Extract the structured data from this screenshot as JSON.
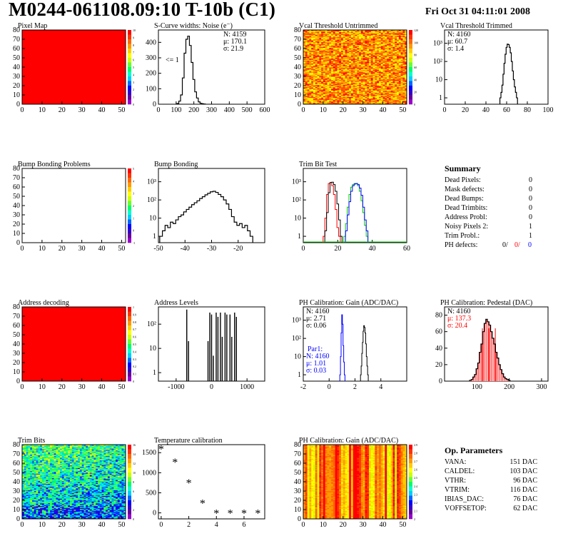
{
  "header": {
    "title": "M0244-061108.09:10 T-10b (C1)",
    "date": "Fri Oct 31 04:11:01 2008"
  },
  "colors": {
    "red": "#ff0000",
    "blue": "#0000ff",
    "green": "#00cc00",
    "palette": [
      "#ff0000",
      "#ff3300",
      "#ff6600",
      "#ff9900",
      "#ffcc00",
      "#ffff00",
      "#ccff00",
      "#66ff33",
      "#00ff66",
      "#00ffcc",
      "#00ccff",
      "#0066ff",
      "#0000ff",
      "#3300cc",
      "#660099",
      "#9900cc"
    ]
  },
  "chart_data": [
    {
      "id": "pixel-map",
      "type": "heatmap",
      "title": "Pixel Map",
      "xlim": [
        0,
        52
      ],
      "ylim": [
        0,
        80
      ],
      "xticks": [
        "0",
        "10",
        "20",
        "30",
        "40",
        "50"
      ],
      "yticks": [
        "0",
        "10",
        "20",
        "30",
        "40",
        "50",
        "60",
        "70",
        "80"
      ],
      "zlim": [
        0,
        10
      ],
      "fill": "uniform-max",
      "zticks": [
        "0",
        "1",
        "2",
        "3",
        "4",
        "5",
        "6",
        "7",
        "8",
        "9",
        "10"
      ]
    },
    {
      "id": "scurve-widths",
      "type": "histogram",
      "title": "S-Curve widths: Noise (e⁻)",
      "xlim": [
        0,
        600
      ],
      "ylim": [
        0,
        480
      ],
      "xticks": [
        "0",
        "100",
        "200",
        "300",
        "400",
        "500",
        "600"
      ],
      "yticks": [
        "0",
        "100",
        "200",
        "300",
        "400"
      ],
      "bins_x": [
        110,
        120,
        130,
        140,
        150,
        160,
        170,
        180,
        190,
        200,
        210,
        220,
        230,
        240,
        250,
        260
      ],
      "bins_y": [
        5,
        20,
        60,
        170,
        330,
        420,
        440,
        380,
        270,
        160,
        80,
        40,
        15,
        6,
        3,
        1
      ],
      "annotation": "<= 1",
      "stats": {
        "N": "4159",
        "mu": "170.1",
        "sigma": "21.9"
      }
    },
    {
      "id": "vcal-untrimmed",
      "type": "heatmap",
      "title": "Vcal Threshold Untrimmed",
      "xlim": [
        0,
        52
      ],
      "ylim": [
        0,
        80
      ],
      "xticks": [
        "0",
        "10",
        "20",
        "30",
        "40",
        "50"
      ],
      "yticks": [
        "0",
        "10",
        "20",
        "30",
        "40",
        "50",
        "60",
        "70",
        "80"
      ],
      "zticks": [
        "0",
        "20",
        "40",
        "60",
        "80",
        "100",
        "120"
      ],
      "zlim": [
        0,
        130
      ],
      "fill": "noisy-orange"
    },
    {
      "id": "vcal-trimmed",
      "type": "histogram",
      "title": "Vcal Threshold Trimmed",
      "log_y": true,
      "xlim": [
        0,
        100
      ],
      "xticks": [
        "0",
        "20",
        "40",
        "60",
        "80",
        "100"
      ],
      "yticks": [
        "1",
        "10",
        "10²",
        "10³"
      ],
      "bins_x": [
        54,
        55,
        56,
        57,
        58,
        59,
        60,
        61,
        62,
        63,
        64,
        65,
        66,
        67,
        68,
        69,
        70
      ],
      "bins_y": [
        1,
        2,
        5,
        20,
        80,
        250,
        600,
        900,
        850,
        600,
        300,
        100,
        30,
        10,
        4,
        2,
        1
      ],
      "stats": {
        "N": "4160",
        "mu": "60.7",
        "sigma": "1.4"
      }
    },
    {
      "id": "bump-bonding-problems",
      "type": "heatmap",
      "title": "Bump Bonding Problems",
      "xlim": [
        0,
        52
      ],
      "ylim": [
        0,
        80
      ],
      "xticks": [
        "0",
        "10",
        "20",
        "30",
        "40",
        "50"
      ],
      "yticks": [
        "0",
        "10",
        "20",
        "30",
        "40",
        "50",
        "60",
        "70",
        "80"
      ],
      "zticks": [
        "-1",
        "0",
        "1",
        "2",
        "3",
        "4",
        "5"
      ],
      "fill": "empty"
    },
    {
      "id": "bump-bonding",
      "type": "histogram",
      "title": "Bump Bonding",
      "log_y": true,
      "xlim": [
        -50,
        -10
      ],
      "xticks": [
        "-50",
        "-40",
        "-30",
        "-20"
      ],
      "yticks": [
        "1",
        "10",
        "10²",
        "10³"
      ],
      "bins_x": [
        -49,
        -48,
        -47,
        -46,
        -45,
        -44,
        -43,
        -42,
        -41,
        -40,
        -39,
        -38,
        -37,
        -36,
        -35,
        -34,
        -33,
        -32,
        -31,
        -30,
        -29,
        -28,
        -27,
        -26,
        -25,
        -24,
        -23,
        -22,
        -21,
        -20,
        -19,
        -18,
        -17,
        -16,
        -15
      ],
      "bins_y": [
        1,
        2,
        4,
        3,
        6,
        5,
        8,
        12,
        15,
        22,
        30,
        40,
        55,
        70,
        90,
        120,
        150,
        190,
        230,
        280,
        300,
        260,
        200,
        150,
        100,
        60,
        30,
        12,
        6,
        4,
        5,
        3,
        4,
        2,
        1
      ]
    },
    {
      "id": "trim-bit-test",
      "type": "histogram",
      "title": "Trim Bit Test",
      "log_y": true,
      "xlim": [
        0,
        60
      ],
      "xticks": [
        "0",
        "20",
        "40",
        "60"
      ],
      "yticks": [
        "1",
        "10",
        "10²",
        "10³"
      ],
      "series": [
        {
          "color": "red",
          "bins_x": [
            12,
            13,
            14,
            15,
            16,
            17,
            18,
            19,
            20,
            21
          ],
          "bins_y": [
            1,
            10,
            200,
            800,
            900,
            600,
            200,
            30,
            3,
            1
          ]
        },
        {
          "color": "black",
          "bins_x": [
            13,
            14,
            15,
            16,
            17,
            18,
            19,
            20,
            21,
            22
          ],
          "bins_y": [
            2,
            20,
            250,
            900,
            950,
            700,
            300,
            60,
            8,
            1
          ]
        },
        {
          "color": "green",
          "bins_x": [
            24,
            25,
            26,
            27,
            28,
            29,
            30,
            31,
            32,
            33,
            34,
            35,
            36,
            37
          ],
          "bins_y": [
            1,
            5,
            40,
            200,
            500,
            700,
            800,
            780,
            600,
            300,
            90,
            20,
            4,
            1
          ]
        },
        {
          "color": "blue",
          "bins_x": [
            25,
            26,
            27,
            28,
            29,
            30,
            31,
            32,
            33,
            34,
            35,
            36,
            37
          ],
          "bins_y": [
            2,
            15,
            80,
            300,
            600,
            750,
            800,
            700,
            450,
            180,
            40,
            8,
            2
          ]
        }
      ]
    },
    {
      "id": "address-decoding",
      "type": "heatmap",
      "title": "Address decoding",
      "xlim": [
        0,
        52
      ],
      "ylim": [
        0,
        80
      ],
      "xticks": [
        "0",
        "10",
        "20",
        "30",
        "40",
        "50"
      ],
      "yticks": [
        "0",
        "10",
        "20",
        "30",
        "40",
        "50",
        "60",
        "70",
        "80"
      ],
      "zticks": [
        "0",
        "0.1",
        "0.2",
        "0.3",
        "0.4",
        "0.5",
        "0.6",
        "0.7",
        "0.8",
        "0.9",
        "1"
      ],
      "fill": "uniform-max"
    },
    {
      "id": "address-levels",
      "type": "histogram",
      "title": "Address Levels",
      "log_y": true,
      "xlim": [
        -1500,
        1500
      ],
      "xticks": [
        "-1000",
        "0",
        "1000"
      ],
      "yticks": [
        "1",
        "10",
        "10²"
      ],
      "spikes_x": [
        -700,
        -650,
        -100,
        -50,
        0,
        50,
        130,
        180,
        250,
        300,
        380,
        430,
        520,
        570,
        650,
        700
      ],
      "spikes_y": [
        400,
        20,
        20,
        300,
        250,
        5,
        300,
        200,
        300,
        30,
        300,
        250,
        250,
        30,
        300,
        200
      ]
    },
    {
      "id": "ph-gain",
      "type": "histogram",
      "title": "PH Calibration: Gain (ADC/DAC)",
      "log_y": true,
      "xlim": [
        -2,
        6
      ],
      "xticks": [
        "-2",
        "0",
        "2",
        "4"
      ],
      "yticks": [
        "1",
        "10",
        "10²",
        "10³"
      ],
      "series": [
        {
          "color": "black",
          "bins_x": [
            2.45,
            2.5,
            2.55,
            2.6,
            2.65,
            2.7,
            2.75,
            2.8,
            2.85,
            2.9,
            2.95,
            3.0
          ],
          "bins_y": [
            1,
            3,
            15,
            60,
            250,
            500,
            400,
            200,
            50,
            10,
            3,
            1
          ]
        },
        {
          "color": "blue",
          "bins_x": [
            0.85,
            0.9,
            0.95,
            1.0,
            1.05,
            1.1,
            1.15,
            1.2
          ],
          "bins_y": [
            1,
            10,
            200,
            2000,
            600,
            40,
            5,
            1
          ]
        }
      ],
      "stats": {
        "N": "4160",
        "mu": "2.71",
        "sigma": "0.06"
      },
      "stats2_label": "Par1:",
      "stats2": {
        "N": "4160",
        "mu": "1.01",
        "sigma": "0.03"
      }
    },
    {
      "id": "ph-pedestal",
      "type": "histogram",
      "title": "PH Calibration: Pedestal (DAC)",
      "xlim": [
        0,
        320
      ],
      "xticks": [
        "100",
        "200",
        "300"
      ],
      "yticks": [
        "0",
        "20",
        "40",
        "60",
        "80"
      ],
      "ylim": [
        0,
        90
      ],
      "bins_x": [
        80,
        85,
        90,
        95,
        100,
        105,
        110,
        115,
        120,
        125,
        130,
        135,
        140,
        145,
        150,
        155,
        160,
        165,
        170,
        175,
        180,
        185,
        190,
        195,
        200
      ],
      "bins_y": [
        1,
        2,
        5,
        8,
        15,
        22,
        35,
        45,
        60,
        70,
        75,
        72,
        68,
        60,
        52,
        45,
        35,
        28,
        20,
        14,
        9,
        5,
        3,
        2,
        1
      ],
      "stats": {
        "N": "4160",
        "mu": "137.3",
        "sigma": "20.4"
      }
    },
    {
      "id": "trim-bits",
      "type": "heatmap",
      "title": "Trim Bits",
      "xlim": [
        0,
        52
      ],
      "ylim": [
        0,
        80
      ],
      "xticks": [
        "0",
        "10",
        "20",
        "30",
        "40",
        "50"
      ],
      "yticks": [
        "0",
        "10",
        "20",
        "30",
        "40",
        "50",
        "60",
        "70",
        "80"
      ],
      "zticks": [
        "0",
        "2",
        "4",
        "6",
        "8",
        "10",
        "12",
        "14",
        "16"
      ],
      "fill": "noisy-green"
    },
    {
      "id": "temperature-calibration",
      "type": "scatter",
      "title": "Temperature calibration",
      "xlim": [
        -0.2,
        7.5
      ],
      "ylim": [
        -150,
        1700
      ],
      "xticks": [
        "0",
        "2",
        "4",
        "6"
      ],
      "yticks": [
        "0",
        "500",
        "1000",
        "1500"
      ],
      "x": [
        0,
        1,
        2,
        3,
        4,
        5,
        6,
        7
      ],
      "y": [
        1600,
        1270,
        760,
        250,
        0,
        0,
        0,
        0
      ]
    },
    {
      "id": "ph-gain-map",
      "type": "heatmap",
      "title": "PH Calibration: Gain (ADC/DAC)",
      "xlim": [
        0,
        52
      ],
      "ylim": [
        0,
        80
      ],
      "xticks": [
        "0",
        "10",
        "20",
        "30",
        "40",
        "50"
      ],
      "yticks": [
        "0",
        "10",
        "20",
        "30",
        "40",
        "50",
        "60",
        "70",
        "80"
      ],
      "zticks": [
        "2",
        "2.1",
        "2.2",
        "2.3",
        "2.4",
        "2.5",
        "2.6",
        "2.7",
        "2.8",
        "2.9"
      ],
      "fill": "column-stripes"
    }
  ],
  "summary": {
    "title": "Summary",
    "rows": [
      {
        "label": "Dead Pixels:",
        "value": "0"
      },
      {
        "label": "Mask defects:",
        "value": "0"
      },
      {
        "label": "Dead Bumps:",
        "value": "0"
      },
      {
        "label": "Dead Trimbits:",
        "value": "0"
      },
      {
        "label": "Address Probl:",
        "value": "0"
      },
      {
        "label": "Noisy Pixels 2:",
        "value": "1"
      },
      {
        "label": "Trim Probl.:",
        "value": "1"
      }
    ],
    "ph_label": "PH defects:",
    "ph_values": [
      "0/",
      "0/",
      "0"
    ]
  },
  "op_params": {
    "title": "Op. Parameters",
    "rows": [
      {
        "label": "VANA:",
        "value": "151 DAC"
      },
      {
        "label": "CALDEL:",
        "value": "103 DAC"
      },
      {
        "label": "VTHR:",
        "value": "96 DAC"
      },
      {
        "label": "VTRIM:",
        "value": "116 DAC"
      },
      {
        "label": "IBIAS_DAC:",
        "value": "76 DAC"
      },
      {
        "label": "VOFFSETOP:",
        "value": "62 DAC"
      }
    ]
  }
}
